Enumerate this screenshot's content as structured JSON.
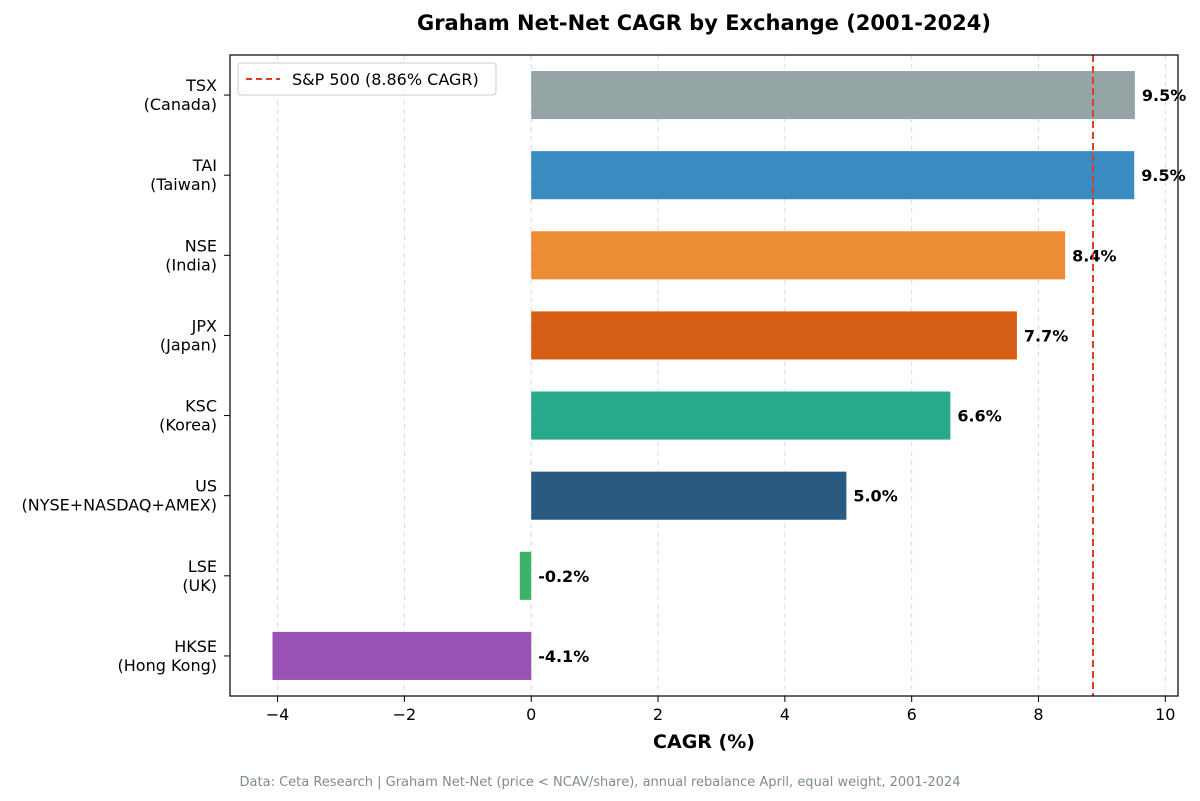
{
  "chart_data": {
    "type": "bar",
    "orientation": "horizontal",
    "title": "Graham Net-Net CAGR by Exchange (2001-2024)",
    "xlabel": "CAGR (%)",
    "ylabel": "",
    "xlim": [
      -4.75,
      10.2
    ],
    "xticks": [
      -4,
      -2,
      0,
      2,
      4,
      6,
      8,
      10
    ],
    "xtick_labels": [
      "−4",
      "−2",
      "0",
      "2",
      "4",
      "6",
      "8",
      "10"
    ],
    "grid": "vertical dashed",
    "categories": [
      {
        "code": "TSX",
        "region": "(Canada)"
      },
      {
        "code": "TAI",
        "region": "(Taiwan)"
      },
      {
        "code": "NSE",
        "region": "(India)"
      },
      {
        "code": "JPX",
        "region": "(Japan)"
      },
      {
        "code": "KSC",
        "region": "(Korea)"
      },
      {
        "code": "US",
        "region": "(NYSE+NASDAQ+AMEX)"
      },
      {
        "code": "LSE",
        "region": "(UK)"
      },
      {
        "code": "HKSE",
        "region": "(Hong Kong)"
      }
    ],
    "values": [
      9.52,
      9.51,
      8.42,
      7.66,
      6.61,
      4.97,
      -0.18,
      -4.08
    ],
    "value_labels": [
      "9.5%",
      "9.5%",
      "8.4%",
      "7.7%",
      "6.6%",
      "5.0%",
      "-0.2%",
      "-4.1%"
    ],
    "colors": [
      "#95a5a6",
      "#3a8bc0",
      "#ec8c35",
      "#d65f15",
      "#28a98b",
      "#2a5a80",
      "#3bb36a",
      "#9b52b6"
    ],
    "reference_line": {
      "label": "S&P 500 (8.86% CAGR)",
      "value": 8.86,
      "color": "#e03c28"
    },
    "legend_position": "upper-left",
    "footnote": "Data: Ceta Research | Graham Net-Net (price < NCAV/share), annual rebalance April, equal weight, 2001-2024"
  }
}
